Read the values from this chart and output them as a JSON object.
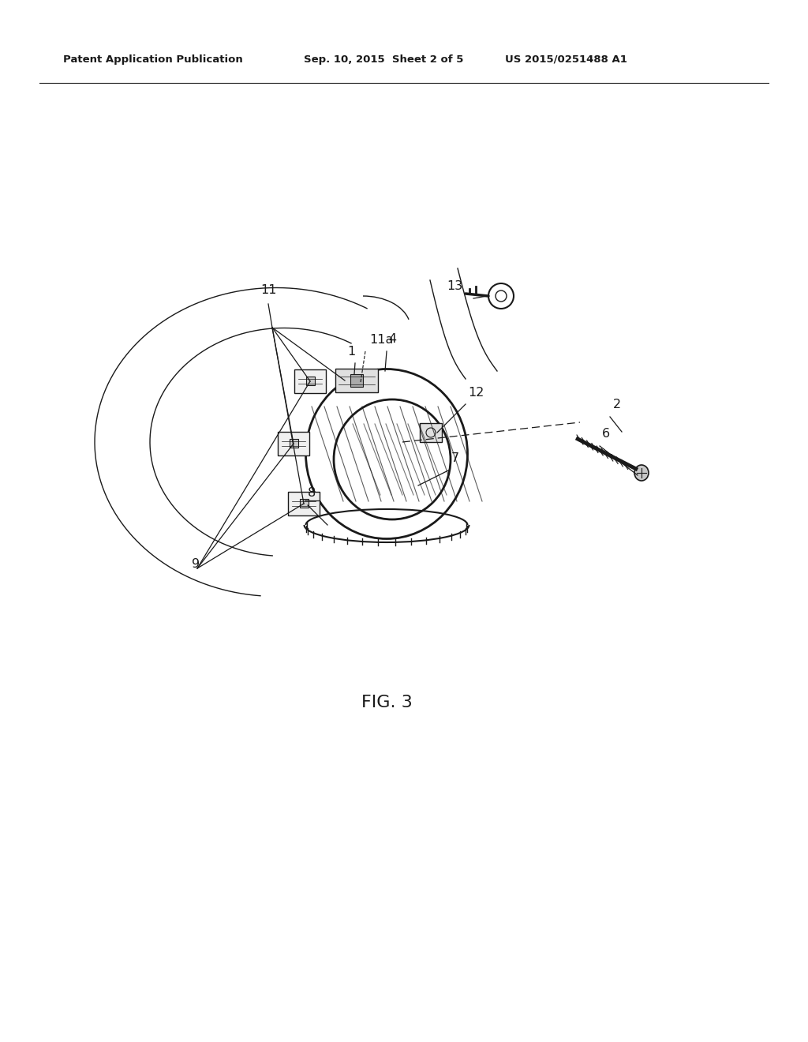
{
  "bg_color": "#ffffff",
  "line_color": "#1a1a1a",
  "header_left": "Patent Application Publication",
  "header_center": "Sep. 10, 2015  Sheet 2 of 5",
  "header_right": "US 2015/0251488 A1",
  "figure_label": "FIG. 3",
  "fig_width": 10.24,
  "fig_height": 13.2,
  "dpi": 100
}
